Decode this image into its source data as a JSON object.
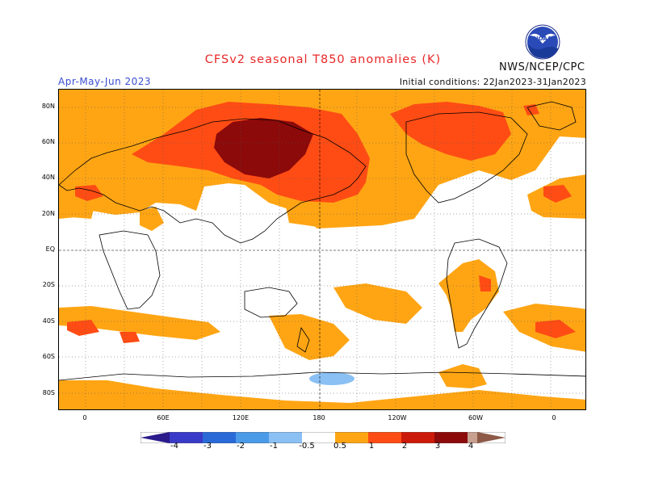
{
  "header": {
    "title": "CFSv2 seasonal T850 anomalies (K)",
    "agency": "NWS/NCEP/CPC",
    "season": "Apr-May-Jun 2023",
    "initial_conditions": "Initial conditions: 22Jan2023-31Jan2023",
    "logo_text": "NOAA"
  },
  "map": {
    "lat_labels": [
      "80N",
      "60N",
      "40N",
      "20N",
      "EQ",
      "20S",
      "40S",
      "60S",
      "80S"
    ],
    "lon_labels": [
      "0",
      "60E",
      "120E",
      "180",
      "120W",
      "60W",
      "0"
    ],
    "grid": true
  },
  "legend": {
    "labels": [
      "-4",
      "-3",
      "-2",
      "-1",
      "-0.5",
      "0.5",
      "1",
      "2",
      "3",
      "4"
    ],
    "colors": {
      "lt_-4": "#2a1a8a",
      "-4_-3": "#3a3ac8",
      "-3_-2": "#2a6ad8",
      "-2_-1": "#4a9ae8",
      "-1_-0.5": "#8ac0f4",
      "neutral": "#ffffff",
      "0.5_1": "#ffa514",
      "1_2": "#ff4c14",
      "2_3": "#cc1a0a",
      "3_4": "#8c0a0a",
      "4_5": "#c8a090",
      "gt_5": "#8c5a46"
    }
  }
}
